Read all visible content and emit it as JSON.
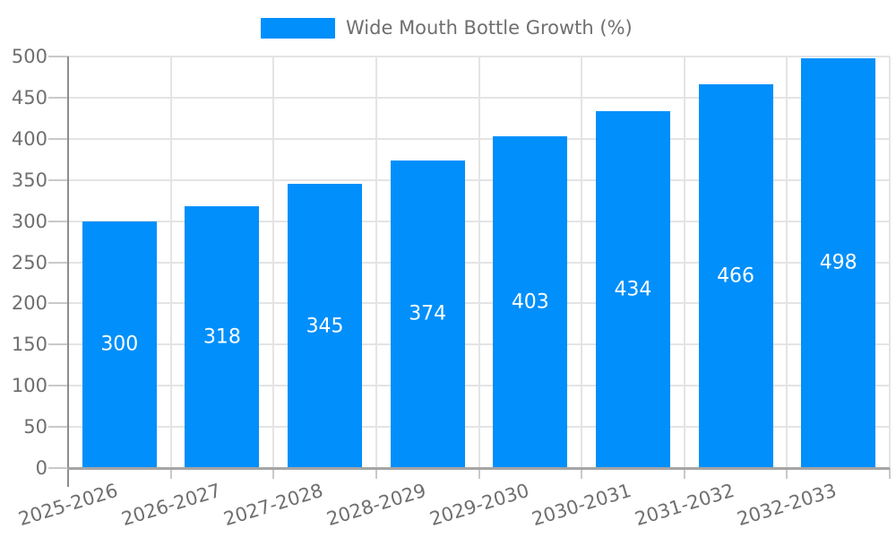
{
  "chart_data": {
    "type": "bar",
    "title": "",
    "categories": [
      "2025-2026",
      "2026-2027",
      "2027-2028",
      "2028-2029",
      "2029-2030",
      "2030-2031",
      "2031-2032",
      "2032-2033"
    ],
    "series": [
      {
        "name": "Wide Mouth Bottle Growth (%)",
        "values": [
          300,
          318,
          345,
          374,
          403,
          434,
          466,
          498
        ],
        "color": "#008FFB"
      }
    ],
    "bar_value_labels": [
      "300",
      "318",
      "345",
      "374",
      "403",
      "434",
      "466",
      "498"
    ],
    "xlabel": "",
    "ylabel": "",
    "ylim": [
      0,
      500
    ],
    "ytick_step": 50,
    "ytick_labels": [
      "0",
      "50",
      "100",
      "150",
      "200",
      "250",
      "300",
      "350",
      "400",
      "450",
      "500"
    ],
    "grid": "horizontal and vertical gridlines on",
    "legend_position": "top-center",
    "x_label_rotation_deg": -17
  },
  "colors": {
    "bar": "#008FFB",
    "gridline": "#e4e4e4",
    "tick": "#c9c9c9",
    "y_axis_line": "#8d8d8d",
    "x_axis_line": "#a5a5a5",
    "tick_label_text": "#6f6f6f",
    "bar_label_text": "#ffffff"
  }
}
